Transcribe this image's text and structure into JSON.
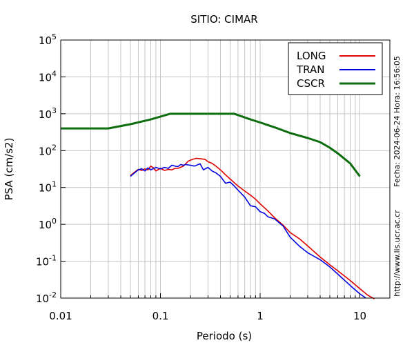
{
  "chart_data": {
    "type": "line",
    "title": "SITIO: CIMAR",
    "xlabel": "Periodo (s)",
    "ylabel": "PSA (cm/s2)",
    "xscale": "log",
    "yscale": "log",
    "xlim": [
      0.01,
      20
    ],
    "ylim": [
      0.01,
      100000
    ],
    "grid": true,
    "legend_position": "top-right",
    "x_ticks": [
      {
        "value": 0.01,
        "label": "0.01"
      },
      {
        "value": 0.1,
        "label": "0.1"
      },
      {
        "value": 1,
        "label": "1"
      },
      {
        "value": 10,
        "label": "10"
      }
    ],
    "y_ticks": [
      {
        "value": 0.01,
        "base": "10",
        "exp": "-2"
      },
      {
        "value": 0.1,
        "base": "10",
        "exp": "-1"
      },
      {
        "value": 1,
        "base": "10",
        "exp": "0"
      },
      {
        "value": 10,
        "base": "10",
        "exp": "1"
      },
      {
        "value": 100,
        "base": "10",
        "exp": "2"
      },
      {
        "value": 1000,
        "base": "10",
        "exp": "3"
      },
      {
        "value": 10000,
        "base": "10",
        "exp": "4"
      },
      {
        "value": 100000,
        "base": "10",
        "exp": "5"
      }
    ],
    "right_annotations": {
      "date": "Fecha: 2024-06-24 Hora: 16:56:05",
      "url": "http://www.lis.ucr.ac.cr"
    },
    "series": [
      {
        "name": "LONG",
        "color": "#e00000",
        "x": [
          0.05,
          0.055,
          0.06,
          0.065,
          0.07,
          0.075,
          0.08,
          0.085,
          0.09,
          0.1,
          0.11,
          0.12,
          0.13,
          0.14,
          0.15,
          0.17,
          0.19,
          0.21,
          0.23,
          0.25,
          0.28,
          0.3,
          0.33,
          0.36,
          0.4,
          0.45,
          0.5,
          0.55,
          0.6,
          0.7,
          0.8,
          0.9,
          1.0,
          1.2,
          1.4,
          1.7,
          2.0,
          2.5,
          3.0,
          4.0,
          5.0,
          6.0,
          8.0,
          10.0,
          12.0,
          14.0
        ],
        "y": [
          21,
          26,
          31,
          29,
          32,
          30,
          38,
          34,
          28,
          33,
          29,
          31,
          30,
          33,
          33,
          38,
          52,
          58,
          62,
          60,
          58,
          50,
          45,
          38,
          30,
          22,
          17,
          13.5,
          11,
          8,
          6.2,
          4.8,
          3.6,
          2.3,
          1.5,
          0.95,
          0.6,
          0.4,
          0.26,
          0.13,
          0.08,
          0.055,
          0.03,
          0.018,
          0.012,
          0.0095
        ]
      },
      {
        "name": "TRAN",
        "color": "#0000e0",
        "x": [
          0.05,
          0.055,
          0.06,
          0.065,
          0.07,
          0.075,
          0.08,
          0.09,
          0.1,
          0.11,
          0.12,
          0.13,
          0.14,
          0.15,
          0.16,
          0.17,
          0.18,
          0.2,
          0.22,
          0.24,
          0.25,
          0.27,
          0.3,
          0.33,
          0.36,
          0.4,
          0.45,
          0.5,
          0.55,
          0.6,
          0.7,
          0.8,
          0.9,
          1.0,
          1.1,
          1.2,
          1.4,
          1.7,
          2.0,
          2.5,
          3.0,
          4.0,
          5.0,
          6.0,
          8.0,
          10.0,
          11.5
        ],
        "y": [
          20,
          25,
          30,
          32,
          28,
          34,
          30,
          35,
          32,
          35,
          33,
          40,
          38,
          37,
          42,
          40,
          42,
          40,
          38,
          42,
          44,
          30,
          35,
          28,
          25,
          20,
          13,
          14,
          11,
          8.5,
          5.5,
          3.2,
          3.0,
          2.2,
          2.0,
          1.6,
          1.4,
          0.9,
          0.45,
          0.25,
          0.17,
          0.11,
          0.07,
          0.045,
          0.022,
          0.013,
          0.01
        ]
      },
      {
        "name": "CSCR",
        "color": "#0e6e0e",
        "x": [
          0.01,
          0.03,
          0.05,
          0.08,
          0.125,
          0.2,
          0.3,
          0.5,
          0.55,
          0.8,
          1.0,
          1.5,
          2.0,
          3.0,
          4.0,
          5.0,
          6.0,
          8.0,
          10.0
        ],
        "y": [
          400,
          400,
          520,
          700,
          1000,
          1000,
          1000,
          1000,
          1000,
          700,
          580,
          400,
          300,
          220,
          170,
          120,
          85,
          45,
          20
        ]
      }
    ]
  }
}
